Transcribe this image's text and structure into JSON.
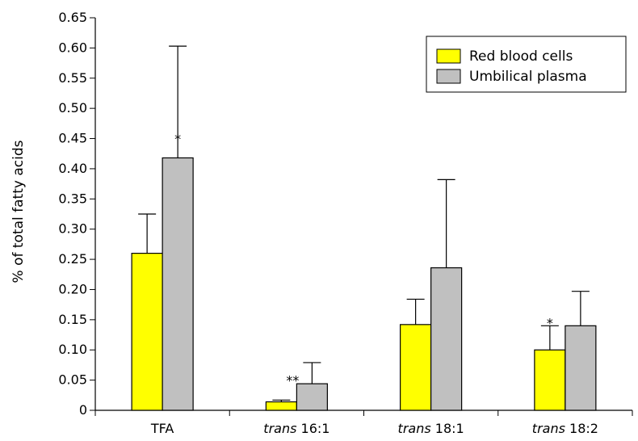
{
  "chart_data": {
    "type": "bar",
    "title": "",
    "ylabel": "% of total fatty acids",
    "xlabel": "",
    "ylim": [
      0,
      0.65
    ],
    "yticks": [
      "0",
      "0.05",
      "0.10",
      "0.15",
      "0.20",
      "0.25",
      "0.30",
      "0.35",
      "0.40",
      "0.45",
      "0.50",
      "0.55",
      "0.60",
      "0.65"
    ],
    "categories": [
      {
        "prefix": "",
        "suffix": "TFA"
      },
      {
        "prefix": "trans",
        "suffix": " 16:1"
      },
      {
        "prefix": "trans",
        "suffix": " 18:1"
      },
      {
        "prefix": "trans",
        "suffix": " 18:2"
      }
    ],
    "series": [
      {
        "name": "Red blood cells",
        "color": "#ffff00",
        "values": [
          0.26,
          0.014,
          0.142,
          0.1
        ],
        "errors": [
          0.065,
          0.003,
          0.042,
          0.04
        ]
      },
      {
        "name": "Umbilical plasma",
        "color": "#c0c0c0",
        "values": [
          0.418,
          0.044,
          0.236,
          0.14
        ],
        "errors": [
          0.185,
          0.035,
          0.146,
          0.057
        ]
      }
    ],
    "annotations": [
      {
        "text": "*",
        "category": 0,
        "series": 1
      },
      {
        "text": "**",
        "category": 1,
        "series": 0
      },
      {
        "text": "*",
        "category": 3,
        "series": 0
      }
    ],
    "legend": {
      "placement": "top-right"
    },
    "grid": false
  }
}
